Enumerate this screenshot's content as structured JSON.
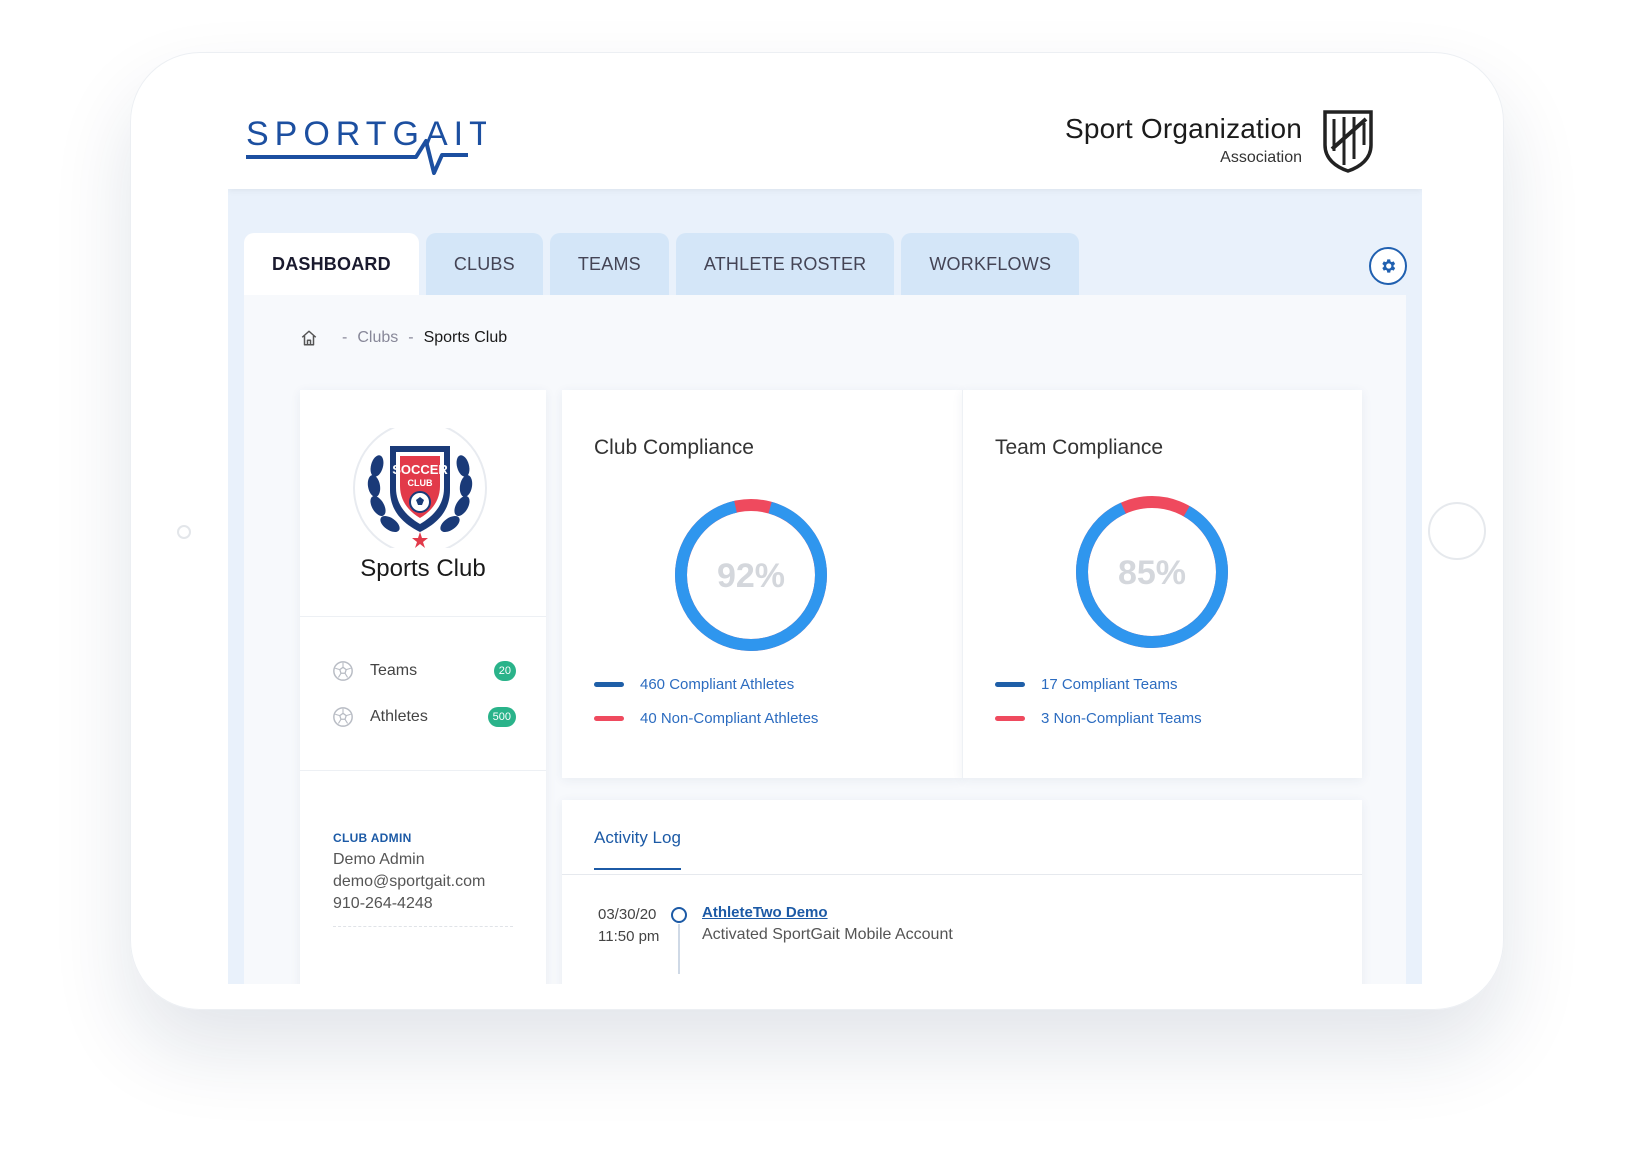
{
  "brand": {
    "logo_text": "SPORTGAIT",
    "org_name": "Sport Organization",
    "org_sub": "Association"
  },
  "tabs": [
    {
      "label": "DASHBOARD",
      "active": true
    },
    {
      "label": "CLUBS",
      "active": false
    },
    {
      "label": "TEAMS",
      "active": false
    },
    {
      "label": "ATHLETE ROSTER",
      "active": false
    },
    {
      "label": "WORKFLOWS",
      "active": false
    }
  ],
  "breadcrumb": {
    "separator": "-",
    "items": [
      "Clubs",
      "Sports Club"
    ]
  },
  "club": {
    "logo_text_top": "SOCCER",
    "logo_text_bottom": "CLUB",
    "name": "Sports Club",
    "stats": [
      {
        "label": "Teams",
        "count": "20"
      },
      {
        "label": "Athletes",
        "count": "500"
      }
    ],
    "admin": {
      "title": "CLUB ADMIN",
      "name": "Demo Admin",
      "email": "demo@sportgait.com",
      "phone": "910-264-4248"
    }
  },
  "club_compliance": {
    "title": "Club Compliance",
    "percent_label": "92%",
    "compliant_fraction": 0.92,
    "compliant_label": "460 Compliant Athletes",
    "noncompliant_label": "40 Non-Compliant Athletes"
  },
  "team_compliance": {
    "title": "Team Compliance",
    "percent_label": "85%",
    "compliant_fraction": 0.85,
    "compliant_label": "17 Compliant Teams",
    "noncompliant_label": "3 Non-Compliant Teams"
  },
  "activity": {
    "tab_label": "Activity Log",
    "entries": [
      {
        "date": "03/30/20",
        "time": "11:50 pm",
        "user": "AthleteTwo Demo",
        "description": "Activated SportGait Mobile Account"
      }
    ]
  },
  "colors": {
    "compliant": "#2f96ee",
    "noncompliant": "#ef4a5e",
    "legend_compliant": "#1f5fa8",
    "accent": "#1c5aa6"
  },
  "icons": {
    "home": "home-icon",
    "settings": "gear-icon",
    "stat": "soccer-ball-icon"
  }
}
